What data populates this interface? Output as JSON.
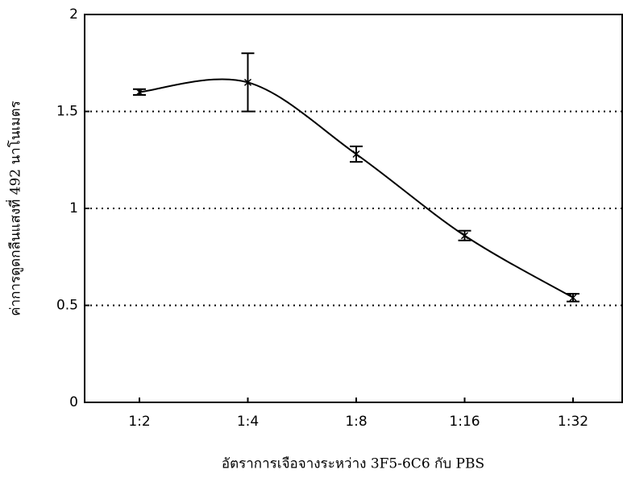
{
  "chart_data": {
    "type": "line",
    "x_label": "อัตราการเจือจางระหว่าง 3F5-6C6 กับ PBS",
    "y_label": "ค่าการดูดกลืนแสงที่ 492 นาโนเมตร",
    "categories": [
      "1:2",
      "1:4",
      "1:8",
      "1:16",
      "1:32"
    ],
    "values": [
      1.6,
      1.65,
      1.28,
      0.86,
      0.54
    ],
    "errors": [
      0.015,
      0.15,
      0.04,
      0.025,
      0.02
    ],
    "color": "#000000",
    "ylim": [
      0,
      2
    ],
    "yticks": [
      0,
      0.5,
      1,
      1.5,
      2
    ],
    "grid": true
  }
}
